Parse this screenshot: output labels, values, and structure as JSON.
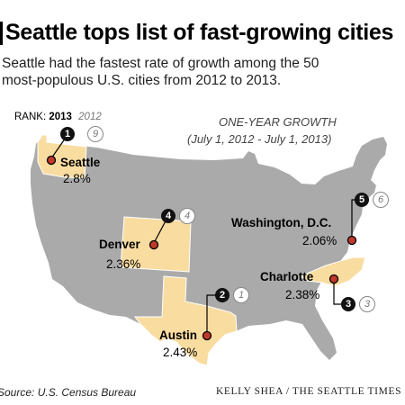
{
  "title": "Seattle tops list of fast-growing cities",
  "subtitle_line1": "Seattle had the fastest rate of growth among the 50",
  "subtitle_line2": "most-populous U.S. cities from 2012 to 2013.",
  "legend": {
    "rank_label": "RANK:",
    "current_year": "2013",
    "previous_year": "2012"
  },
  "growth_label": "ONE-YEAR GROWTH",
  "growth_range": "(July 1, 2012 - July 1, 2013)",
  "colors": {
    "country_fill": "#aaaaaa",
    "highlight_state": "#f9dca0",
    "marker": "#c0392b"
  },
  "cities": [
    {
      "name": "Seattle",
      "growth": "2.8%",
      "rank_2013": "1",
      "rank_2012": "9"
    },
    {
      "name": "Austin",
      "growth": "2.43%",
      "rank_2013": "2",
      "rank_2012": "1"
    },
    {
      "name": "Charlotte",
      "growth": "2.38%",
      "rank_2013": "3",
      "rank_2012": "3"
    },
    {
      "name": "Denver",
      "growth": "2.36%",
      "rank_2013": "4",
      "rank_2012": "4"
    },
    {
      "name": "Washington, D.C.",
      "growth": "2.06%",
      "rank_2013": "5",
      "rank_2012": "6"
    }
  ],
  "source": "Source: U.S. Census Bureau",
  "credit": "KELLY SHEA / THE SEATTLE TIMES"
}
